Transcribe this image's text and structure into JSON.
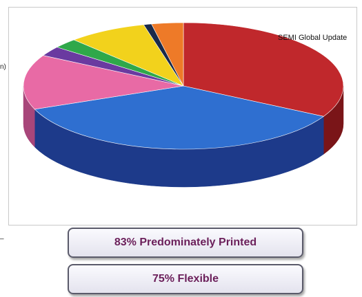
{
  "chart_data": {
    "type": "pie",
    "style": "3d",
    "title": "",
    "source": "SEMI Global Update",
    "slices": [
      {
        "value": 33.0,
        "color": "#c0282c",
        "side_color": "#7a1518"
      },
      {
        "value": 36.0,
        "color": "#2f6fd0",
        "side_color": "#1d3a8a"
      },
      {
        "value": 14.0,
        "color": "#e86aa5",
        "side_color": "#a8467a"
      },
      {
        "value": 2.5,
        "color": "#6a3aa0",
        "side_color": "#45236a"
      },
      {
        "value": 2.5,
        "color": "#2fa84a",
        "side_color": "#1e6e30"
      },
      {
        "value": 8.0,
        "color": "#f2d21c",
        "side_color": "#a88f10"
      },
      {
        "value": 0.8,
        "color": "#1a2a4a",
        "side_color": "#0e1830"
      },
      {
        "value": 3.2,
        "color": "#ee7a28",
        "side_color": "#a4501a"
      }
    ]
  },
  "left_edge": {
    "label_fragment": "n)",
    "mark_fragment": "–"
  },
  "callouts": {
    "printed": "83% Predominately Printed",
    "flexible": "75% Flexible"
  }
}
